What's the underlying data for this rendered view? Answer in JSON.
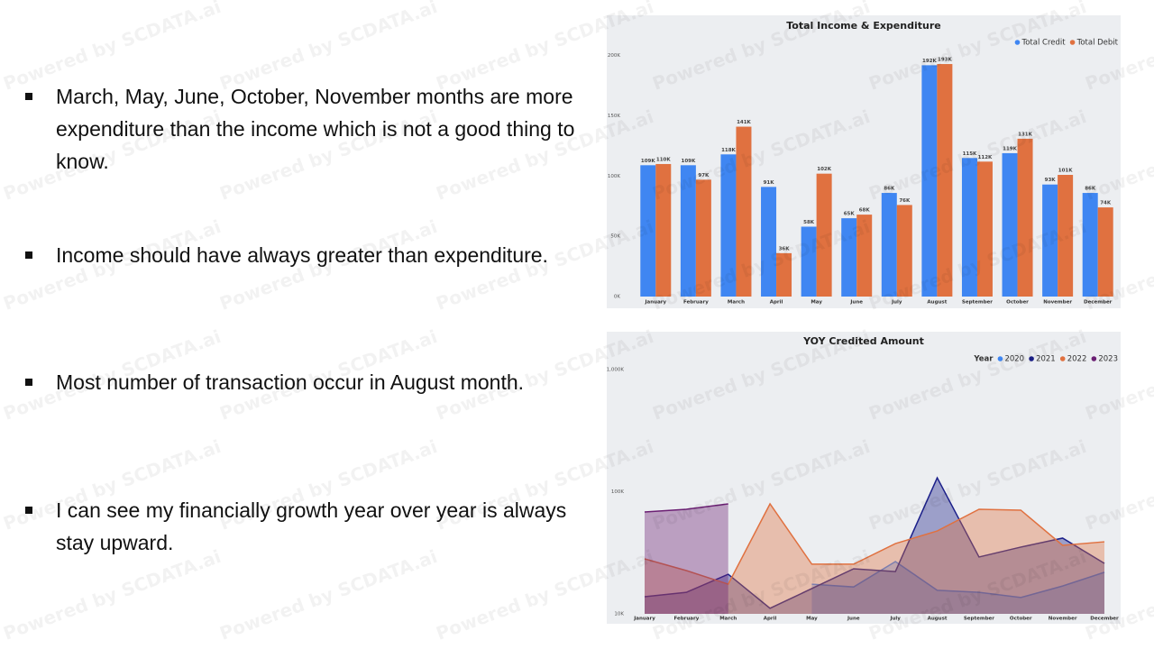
{
  "bullets": [
    "March, May, June, October, November months are more expenditure than the income which is not a good thing to know.",
    "Income should have always greater than expenditure.",
    "Most number of transaction occur in August month.",
    "I can see my financially growth year over year is always stay upward."
  ],
  "watermark": "Powered by SCDATA.ai",
  "chart_data": [
    {
      "type": "bar",
      "title": "Total Income & Expenditure",
      "categories": [
        "January",
        "February",
        "March",
        "April",
        "May",
        "June",
        "July",
        "August",
        "September",
        "October",
        "November",
        "December"
      ],
      "series": [
        {
          "name": "Total Credit",
          "color": "#3f86f2",
          "values": [
            109,
            109,
            118,
            91,
            58,
            65,
            86,
            192,
            115,
            119,
            93,
            86
          ],
          "value_labels": [
            "109K",
            "109K",
            "118K",
            "91K",
            "58K",
            "65K",
            "86K",
            "192K",
            "115K",
            "119K",
            "93K",
            "86K"
          ]
        },
        {
          "name": "Total Debit",
          "color": "#e07140",
          "values": [
            110,
            97,
            141,
            36,
            102,
            68,
            76,
            193,
            112,
            131,
            101,
            74
          ],
          "value_labels": [
            "110K",
            "97K",
            "141K",
            "36K",
            "102K",
            "68K",
            "76K",
            "193K",
            "112K",
            "131K",
            "101K",
            "74K"
          ]
        }
      ],
      "ylim": [
        0,
        205
      ],
      "yticks": [
        {
          "value": 0,
          "label": "0K"
        },
        {
          "value": 50,
          "label": "50K"
        },
        {
          "value": 100,
          "label": "100K"
        },
        {
          "value": 150,
          "label": "150K"
        },
        {
          "value": 200,
          "label": "200K"
        }
      ],
      "grid": false,
      "legend": "top-right"
    },
    {
      "type": "area",
      "title": "YOY Credited Amount",
      "legend_title": "Year",
      "categories": [
        "January",
        "February",
        "March",
        "April",
        "May",
        "June",
        "July",
        "August",
        "September",
        "October",
        "November",
        "December"
      ],
      "series": [
        {
          "name": "2020",
          "color": "#3f86f2",
          "values": [
            null,
            null,
            null,
            null,
            17.5,
            16.6,
            26.8,
            15.6,
            15.0,
            13.6,
            16.9,
            21.9
          ]
        },
        {
          "name": "2021",
          "color": "#1b1f8a",
          "values": [
            13.8,
            15.0,
            21.1,
            11.1,
            16.1,
            23.4,
            22.2,
            130,
            29.2,
            35.2,
            41.7,
            25.9
          ]
        },
        {
          "name": "2022",
          "color": "#e07140",
          "values": [
            28.2,
            22.6,
            17.5,
            79.5,
            25.5,
            25.5,
            37.6,
            47.7,
            71.8,
            70.6,
            36.4,
            38.9
          ]
        },
        {
          "name": "2023",
          "color": "#6b1f73",
          "values": [
            68.2,
            71.8,
            79.5,
            null,
            null,
            null,
            null,
            null,
            null,
            null,
            null,
            null
          ]
        }
      ],
      "log_scale": true,
      "ylim": [
        10,
        1000
      ],
      "yticks": [
        {
          "value": 10,
          "label": "10K"
        },
        {
          "value": 100,
          "label": "100K"
        },
        {
          "value": 1000,
          "label": "1,000K"
        }
      ],
      "grid": false,
      "legend": "top-right"
    }
  ]
}
